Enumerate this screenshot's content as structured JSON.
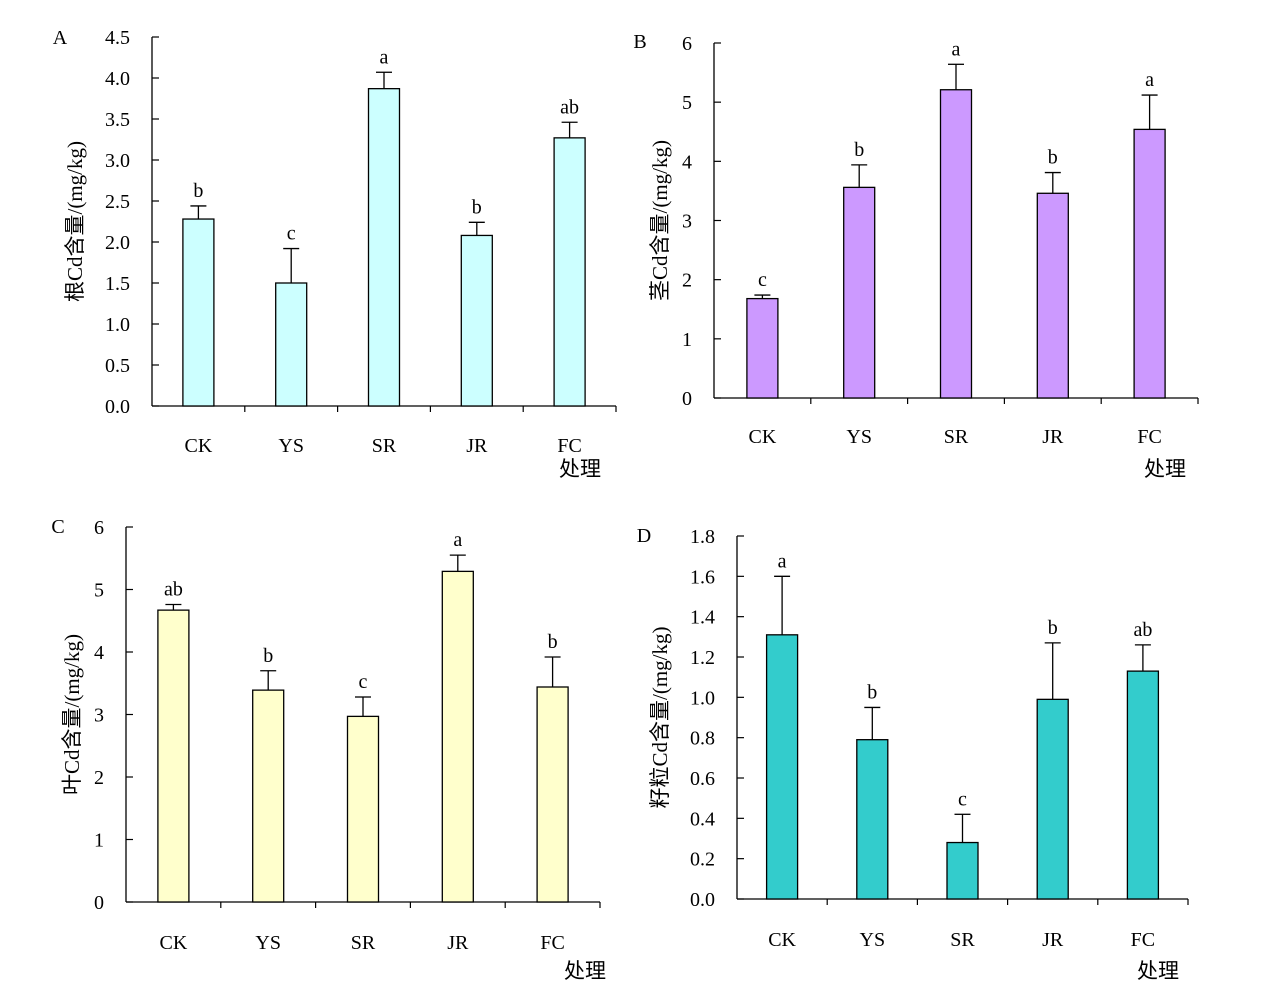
{
  "figure_colors": {
    "axis": "#000000",
    "bar_stroke": "#000000",
    "background": "#ffffff"
  },
  "chart_data": [
    {
      "type": "bar",
      "panel": "A",
      "ylabel": "根Cd含量/(mg/kg)",
      "xlabel": "处理",
      "categories": [
        "CK",
        "YS",
        "SR",
        "JR",
        "FC"
      ],
      "values": [
        2.28,
        1.5,
        3.87,
        2.08,
        3.27
      ],
      "errors": [
        0.16,
        0.42,
        0.2,
        0.16,
        0.19
      ],
      "significance": [
        "b",
        "c",
        "a",
        "b",
        "ab"
      ],
      "ylim": [
        0,
        4.5
      ],
      "yticks": [
        "0.0",
        "0.5",
        "1.0",
        "1.5",
        "2.0",
        "2.5",
        "3.0",
        "3.5",
        "4.0",
        "4.5"
      ],
      "color": "#ccffff",
      "grid": false
    },
    {
      "type": "bar",
      "panel": "B",
      "ylabel": "茎Cd含量/(mg/kg)",
      "xlabel": "处理",
      "categories": [
        "CK",
        "YS",
        "SR",
        "JR",
        "FC"
      ],
      "values": [
        1.68,
        3.56,
        5.21,
        3.46,
        4.54
      ],
      "errors": [
        0.06,
        0.38,
        0.43,
        0.35,
        0.58
      ],
      "significance": [
        "c",
        "b",
        "a",
        "b",
        "a"
      ],
      "ylim": [
        0,
        6
      ],
      "yticks": [
        "0",
        "1",
        "2",
        "3",
        "4",
        "5",
        "6"
      ],
      "color": "#cc99ff",
      "grid": false
    },
    {
      "type": "bar",
      "panel": "C",
      "ylabel": "叶Cd含量/(mg/kg)",
      "xlabel": "处理",
      "categories": [
        "CK",
        "YS",
        "SR",
        "JR",
        "FC"
      ],
      "values": [
        4.67,
        3.39,
        2.97,
        5.29,
        3.44
      ],
      "errors": [
        0.09,
        0.31,
        0.31,
        0.26,
        0.48
      ],
      "significance": [
        "ab",
        "b",
        "c",
        "a",
        "b"
      ],
      "ylim": [
        0,
        6
      ],
      "yticks": [
        "0",
        "1",
        "2",
        "3",
        "4",
        "5",
        "6"
      ],
      "color": "#ffffcc",
      "grid": false
    },
    {
      "type": "bar",
      "panel": "D",
      "ylabel": "籽粒Cd含量/(mg/kg)",
      "xlabel": "处理",
      "categories": [
        "CK",
        "YS",
        "SR",
        "JR",
        "FC"
      ],
      "values": [
        1.31,
        0.79,
        0.28,
        0.99,
        1.13
      ],
      "errors": [
        0.29,
        0.16,
        0.14,
        0.28,
        0.13
      ],
      "significance": [
        "a",
        "b",
        "c",
        "b",
        "ab"
      ],
      "ylim": [
        0,
        1.8
      ],
      "yticks": [
        "0.0",
        "0.2",
        "0.4",
        "0.6",
        "0.8",
        "1.0",
        "1.2",
        "1.4",
        "1.6",
        "1.8"
      ],
      "color": "#33cccc",
      "grid": false
    }
  ]
}
